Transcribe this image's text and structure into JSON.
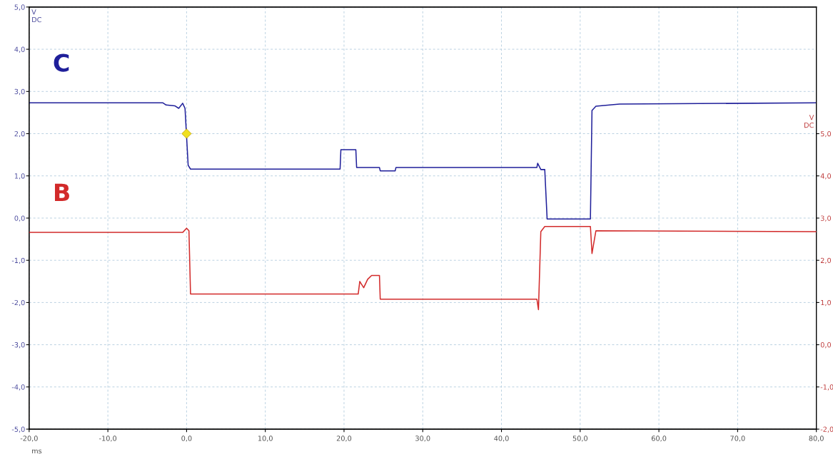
{
  "chart_data": {
    "type": "line",
    "xlabel": "ms",
    "ylabel": "V\nDC",
    "y2label": "V\nDC",
    "xlim": [
      -20,
      80
    ],
    "ylim": [
      -5,
      5
    ],
    "y2lim": [
      -2,
      8
    ],
    "xticks": [
      {
        "value": -20,
        "label": "-20,0"
      },
      {
        "value": -10,
        "label": "-10,0"
      },
      {
        "value": 0,
        "label": "0,0"
      },
      {
        "value": 10,
        "label": "10,0"
      },
      {
        "value": 20,
        "label": "20,0"
      },
      {
        "value": 30,
        "label": "30,0"
      },
      {
        "value": 40,
        "label": "40,0"
      },
      {
        "value": 50,
        "label": "50,0"
      },
      {
        "value": 60,
        "label": "60,0"
      },
      {
        "value": 70,
        "label": "70,0"
      },
      {
        "value": 80,
        "label": "80,0"
      }
    ],
    "yticks": [
      {
        "value": -5,
        "label": "-5,0"
      },
      {
        "value": -4,
        "label": "-4,0"
      },
      {
        "value": -3,
        "label": "-3,0"
      },
      {
        "value": -2,
        "label": "-2,0"
      },
      {
        "value": -1,
        "label": "-1,0"
      },
      {
        "value": 0,
        "label": "0,0"
      },
      {
        "value": 1,
        "label": "1,0"
      },
      {
        "value": 2,
        "label": "2,0"
      },
      {
        "value": 3,
        "label": "3,0"
      },
      {
        "value": 4,
        "label": "4,0"
      },
      {
        "value": 5,
        "label": "5,0"
      }
    ],
    "y2ticks": [
      {
        "value": -2,
        "label": "-2,0"
      },
      {
        "value": -1,
        "label": "-1,0"
      },
      {
        "value": 0,
        "label": "0,0"
      },
      {
        "value": 1,
        "label": "1,0"
      },
      {
        "value": 2,
        "label": "2,0"
      },
      {
        "value": 3,
        "label": "3,0"
      },
      {
        "value": 4,
        "label": "4,0"
      },
      {
        "value": 5,
        "label": "5,0"
      }
    ],
    "grid": true,
    "legend": false,
    "line_style": "solid",
    "series": [
      {
        "name": "C",
        "color": "#1f1f9a",
        "x": [
          -20,
          -3,
          -2.6,
          -1.5,
          -1,
          -0.5,
          -0.2,
          0.2,
          0.5,
          19.5,
          19.6,
          21.5,
          21.6,
          24.5,
          24.6,
          26.5,
          26.6,
          44.5,
          44.6,
          45,
          45.5,
          45.8,
          51.3,
          51.5,
          52,
          55,
          80
        ],
        "values": [
          2.73,
          2.73,
          2.68,
          2.66,
          2.6,
          2.72,
          2.6,
          1.25,
          1.16,
          1.16,
          1.62,
          1.62,
          1.2,
          1.2,
          1.12,
          1.12,
          1.2,
          1.2,
          1.3,
          1.15,
          1.15,
          -0.02,
          -0.02,
          2.55,
          2.65,
          2.7,
          2.73
        ]
      },
      {
        "name": "B",
        "color": "#d22a2a",
        "axis": "y2",
        "x": [
          -20,
          -0.5,
          0,
          0.3,
          0.5,
          21.8,
          22,
          22.5,
          23,
          23.5,
          24.5,
          24.6,
          44.5,
          44.7,
          45,
          45.5,
          46,
          51.3,
          51.5,
          52,
          80
        ],
        "values": [
          2.66,
          2.66,
          2.76,
          2.7,
          1.2,
          1.2,
          1.5,
          1.35,
          1.55,
          1.64,
          1.64,
          1.08,
          1.08,
          0.83,
          2.68,
          2.8,
          2.8,
          2.8,
          2.16,
          2.7,
          2.68
        ]
      },
      {
        "type": "scatter",
        "color": "#f0e020",
        "marker": "diamond",
        "x": [
          0
        ],
        "values": [
          2.0
        ]
      }
    ]
  }
}
